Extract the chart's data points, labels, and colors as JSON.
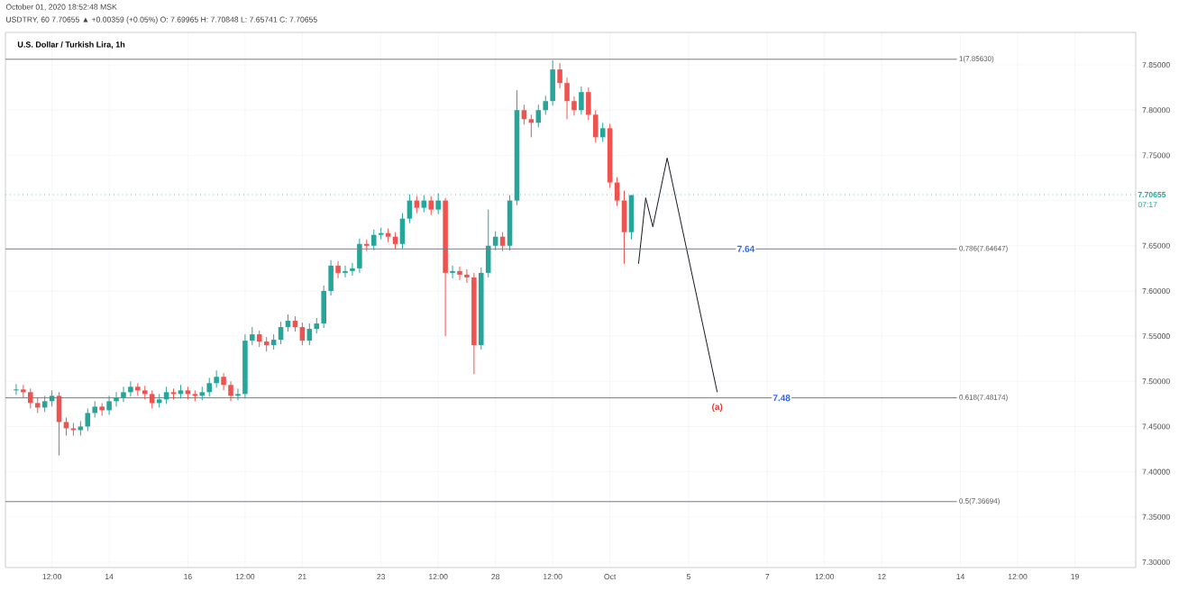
{
  "chart_data": {
    "type": "candlestick",
    "title": "U.S. Dollar / Turkish Lira, 1h",
    "annotations": [
      "October 01, 2020 18:52:48 MSK",
      "USDTRY, 60 7.70655 ▲ +0.00359 (+0.05%) O: 7.69965 H: 7.70848 L: 7.65741 C: 7.70655",
      "07:17",
      {
        "text": "7.64",
        "y": 7.6465
      },
      {
        "text": "7.48",
        "y": 7.4817
      },
      "(a)"
    ],
    "categories": [
      null,
      null,
      null,
      null,
      null,
      null,
      "12:00",
      null,
      null,
      null,
      null,
      null,
      null,
      null,
      "14",
      null,
      null,
      null,
      null,
      null,
      null,
      null,
      null,
      null,
      null,
      "16",
      null,
      null,
      null,
      null,
      null,
      null,
      null,
      "12:00",
      null,
      null,
      null,
      null,
      null,
      null,
      null,
      "21",
      null,
      null,
      null,
      null,
      null,
      null,
      null,
      null,
      null,
      null,
      "23",
      null,
      null,
      null,
      null,
      null,
      null,
      null,
      "12:00",
      null,
      null,
      null,
      null,
      null,
      null,
      null,
      "28",
      null,
      null,
      null,
      null,
      null,
      null,
      null,
      "12:00",
      null,
      null,
      null,
      null,
      null,
      null,
      null,
      "Oct",
      null,
      null,
      null,
      null,
      null,
      null,
      null,
      null,
      null,
      null,
      "5",
      null,
      null,
      null,
      null,
      null,
      null,
      null,
      null,
      null,
      null,
      "7",
      null,
      null,
      null,
      null,
      null,
      null,
      null,
      "12:00",
      null,
      null,
      null,
      null,
      null,
      null,
      null,
      "12",
      null,
      null,
      null,
      null,
      null,
      null,
      null,
      null,
      null,
      null,
      "14",
      null,
      null,
      null,
      null,
      null,
      null,
      null,
      "12:00",
      null,
      null,
      null,
      null,
      null,
      null,
      null,
      "19",
      null,
      null,
      null,
      null,
      null,
      null,
      null,
      null
    ],
    "ohlc": [
      null,
      [
        7.49,
        7.497,
        7.485,
        7.491
      ],
      [
        7.491,
        7.496,
        7.482,
        7.488
      ],
      [
        7.488,
        7.492,
        7.47,
        7.476
      ],
      [
        7.476,
        7.482,
        7.465,
        7.471
      ],
      [
        7.471,
        7.484,
        7.466,
        7.478
      ],
      [
        7.478,
        7.49,
        7.472,
        7.484
      ],
      [
        7.484,
        7.488,
        7.418,
        7.455
      ],
      [
        7.455,
        7.46,
        7.44,
        7.448
      ],
      [
        7.448,
        7.454,
        7.44,
        7.446
      ],
      [
        7.446,
        7.456,
        7.44,
        7.45
      ],
      [
        7.45,
        7.47,
        7.445,
        7.465
      ],
      [
        7.465,
        7.478,
        7.46,
        7.472
      ],
      [
        7.472,
        7.476,
        7.462,
        7.468
      ],
      [
        7.468,
        7.484,
        7.463,
        7.478
      ],
      [
        7.478,
        7.488,
        7.472,
        7.482
      ],
      [
        7.482,
        7.494,
        7.477,
        7.488
      ],
      [
        7.488,
        7.5,
        7.483,
        7.494
      ],
      [
        7.494,
        7.498,
        7.484,
        7.49
      ],
      [
        7.49,
        7.495,
        7.48,
        7.486
      ],
      [
        7.486,
        7.49,
        7.47,
        7.476
      ],
      [
        7.476,
        7.486,
        7.471,
        7.48
      ],
      [
        7.48,
        7.494,
        7.475,
        7.488
      ],
      [
        7.488,
        7.492,
        7.48,
        7.486
      ],
      [
        7.486,
        7.496,
        7.481,
        7.49
      ],
      [
        7.49,
        7.494,
        7.48,
        7.486
      ],
      [
        7.486,
        7.49,
        7.478,
        7.484
      ],
      [
        7.484,
        7.494,
        7.479,
        7.488
      ],
      [
        7.488,
        7.504,
        7.483,
        7.498
      ],
      [
        7.498,
        7.512,
        7.493,
        7.505
      ],
      [
        7.505,
        7.509,
        7.49,
        7.496
      ],
      [
        7.496,
        7.5,
        7.478,
        7.484
      ],
      [
        7.484,
        7.492,
        7.479,
        7.486
      ],
      [
        7.486,
        7.552,
        7.481,
        7.545
      ],
      [
        7.545,
        7.56,
        7.54,
        7.552
      ],
      [
        7.552,
        7.556,
        7.538,
        7.544
      ],
      [
        7.544,
        7.549,
        7.533,
        7.54
      ],
      [
        7.54,
        7.552,
        7.535,
        7.546
      ],
      [
        7.546,
        7.566,
        7.541,
        7.56
      ],
      [
        7.56,
        7.574,
        7.555,
        7.567
      ],
      [
        7.567,
        7.572,
        7.555,
        7.56
      ],
      [
        7.56,
        7.565,
        7.54,
        7.545
      ],
      [
        7.545,
        7.564,
        7.54,
        7.558
      ],
      [
        7.558,
        7.57,
        7.553,
        7.564
      ],
      [
        7.564,
        7.606,
        7.559,
        7.6
      ],
      [
        7.6,
        7.634,
        7.595,
        7.628
      ],
      [
        7.628,
        7.633,
        7.614,
        7.62
      ],
      [
        7.62,
        7.628,
        7.615,
        7.622
      ],
      [
        7.622,
        7.631,
        7.617,
        7.625
      ],
      [
        7.625,
        7.658,
        7.62,
        7.652
      ],
      [
        7.652,
        7.657,
        7.644,
        7.65
      ],
      [
        7.65,
        7.668,
        7.645,
        7.662
      ],
      [
        7.662,
        7.67,
        7.657,
        7.664
      ],
      [
        7.664,
        7.669,
        7.654,
        7.66
      ],
      [
        7.66,
        7.665,
        7.646,
        7.652
      ],
      [
        7.652,
        7.686,
        7.647,
        7.68
      ],
      [
        7.68,
        7.707,
        7.675,
        7.7
      ],
      [
        7.7,
        7.705,
        7.686,
        7.692
      ],
      [
        7.692,
        7.706,
        7.687,
        7.7
      ],
      [
        7.7,
        7.705,
        7.684,
        7.69
      ],
      [
        7.69,
        7.708,
        7.685,
        7.7
      ],
      [
        7.7,
        7.703,
        7.55,
        7.62
      ],
      [
        7.62,
        7.628,
        7.614,
        7.622
      ],
      [
        7.622,
        7.627,
        7.612,
        7.618
      ],
      [
        7.618,
        7.624,
        7.609,
        7.615
      ],
      [
        7.615,
        7.62,
        7.508,
        7.54
      ],
      [
        7.54,
        7.626,
        7.535,
        7.62
      ],
      [
        7.62,
        7.69,
        7.615,
        7.65
      ],
      [
        7.65,
        7.666,
        7.645,
        7.66
      ],
      [
        7.66,
        7.665,
        7.644,
        7.65
      ],
      [
        7.65,
        7.706,
        7.645,
        7.7
      ],
      [
        7.7,
        7.822,
        7.695,
        7.8
      ],
      [
        7.8,
        7.806,
        7.784,
        7.79
      ],
      [
        7.79,
        7.795,
        7.77,
        7.786
      ],
      [
        7.786,
        7.806,
        7.781,
        7.8
      ],
      [
        7.8,
        7.816,
        7.795,
        7.81
      ],
      [
        7.81,
        7.855,
        7.805,
        7.845
      ],
      [
        7.845,
        7.852,
        7.824,
        7.83
      ],
      [
        7.83,
        7.836,
        7.79,
        7.81
      ],
      [
        7.81,
        7.815,
        7.794,
        7.8
      ],
      [
        7.8,
        7.826,
        7.795,
        7.82
      ],
      [
        7.82,
        7.825,
        7.789,
        7.795
      ],
      [
        7.795,
        7.8,
        7.764,
        7.77
      ],
      [
        7.77,
        7.786,
        7.765,
        7.78
      ],
      [
        7.78,
        7.785,
        7.714,
        7.72
      ],
      [
        7.72,
        7.726,
        7.694,
        7.7
      ],
      [
        7.7,
        7.711,
        7.63,
        7.665
      ],
      [
        7.665,
        7.706,
        7.657,
        7.706
      ],
      null,
      null,
      null,
      null,
      null,
      null,
      null,
      null,
      null,
      null,
      null,
      null,
      null,
      null,
      null,
      null,
      null,
      null,
      null,
      null,
      null,
      null,
      null,
      null,
      null,
      null,
      null,
      null,
      null,
      null,
      null,
      null,
      null,
      null,
      null,
      null,
      null,
      null,
      null,
      null,
      null,
      null,
      null,
      null,
      null,
      null,
      null,
      null,
      null,
      null,
      null,
      null,
      null,
      null,
      null,
      null,
      null,
      null,
      null,
      null,
      null,
      null,
      null,
      null,
      null,
      null,
      null,
      null,
      null,
      null
    ],
    "series": [
      {
        "type": "line",
        "color": "#131722",
        "values": [
          null,
          null,
          null,
          null,
          null,
          null,
          null,
          null,
          null,
          null,
          null,
          null,
          null,
          null,
          null,
          null,
          null,
          null,
          null,
          null,
          null,
          null,
          null,
          null,
          null,
          null,
          null,
          null,
          null,
          null,
          null,
          null,
          null,
          null,
          null,
          null,
          null,
          null,
          null,
          null,
          null,
          null,
          null,
          null,
          null,
          null,
          null,
          null,
          null,
          null,
          null,
          null,
          null,
          null,
          null,
          null,
          null,
          null,
          null,
          null,
          null,
          null,
          null,
          null,
          null,
          null,
          null,
          null,
          null,
          null,
          null,
          null,
          null,
          null,
          null,
          null,
          null,
          null,
          null,
          null,
          null,
          null,
          null,
          null,
          null,
          null,
          null,
          null,
          7.63,
          7.703,
          7.671,
          null,
          7.747,
          null,
          null,
          null,
          null,
          null,
          null,
          7.488,
          null,
          null,
          null,
          null,
          null,
          null,
          null,
          null,
          null,
          null,
          null,
          null,
          null,
          null,
          null,
          null,
          null,
          null,
          null,
          null,
          null,
          null,
          null,
          null,
          null,
          null,
          null,
          null,
          null,
          null,
          null,
          null,
          null,
          null,
          null,
          null,
          null,
          null,
          null,
          null,
          null,
          null,
          null,
          null,
          null,
          null,
          null,
          null,
          null,
          null,
          null,
          null,
          null,
          null,
          null,
          null,
          null,
          null
        ]
      }
    ],
    "ref_lines": [
      {
        "axis": "y",
        "value": 7.8563,
        "label": "1(7.85630)",
        "color": "#787b86"
      },
      {
        "axis": "y",
        "value": 7.64647,
        "label": "0.786(7.64647)",
        "color": "#787b86"
      },
      {
        "axis": "y",
        "value": 7.48174,
        "label": "0.618(7.48174)",
        "color": "#787b86"
      },
      {
        "axis": "y",
        "value": 7.36694,
        "label": "0.5(7.36694)",
        "color": "#787b86"
      },
      {
        "axis": "y",
        "value": 7.70655,
        "label": "7.70655",
        "color": "#26a69a",
        "line_style": "dotted"
      }
    ],
    "ylim": [
      7.294,
      7.886
    ],
    "yticks": [
      {
        "value": 7.3,
        "label": "7.30000"
      },
      {
        "value": 7.35,
        "label": "7.35000"
      },
      {
        "value": 7.4,
        "label": "7.40000"
      },
      {
        "value": 7.45,
        "label": "7.45000"
      },
      {
        "value": 7.5,
        "label": "7.50000"
      },
      {
        "value": 7.55,
        "label": "7.55000"
      },
      {
        "value": 7.6,
        "label": "7.60000"
      },
      {
        "value": 7.65,
        "label": "7.65000"
      },
      {
        "value": 7.7,
        "label": null
      },
      {
        "value": 7.75,
        "label": "7.75000"
      },
      {
        "value": 7.8,
        "label": "7.80000"
      },
      {
        "value": 7.85,
        "label": "7.85000"
      }
    ],
    "grid": true
  }
}
